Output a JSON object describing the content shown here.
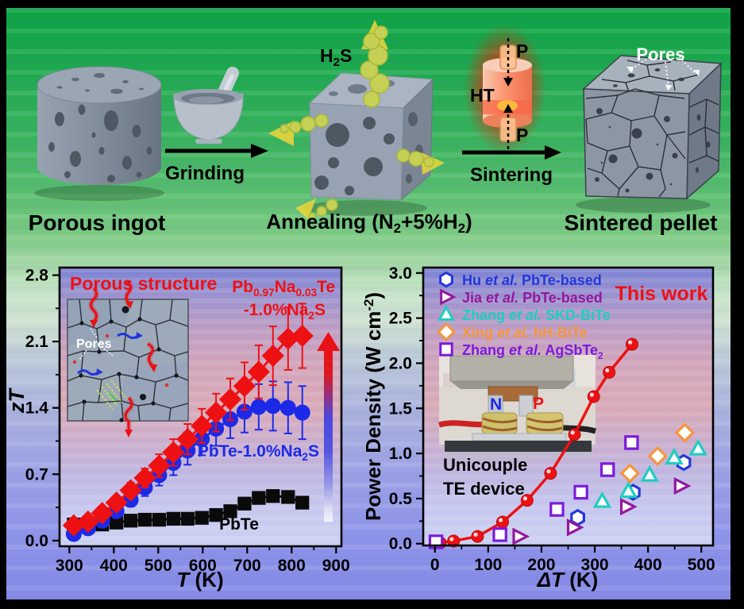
{
  "figure": {
    "process": {
      "porous_ingot_label": "Porous ingot",
      "grinding_label": "Grinding",
      "h2s_label": [
        {
          "t": "H"
        },
        {
          "t": "2",
          "s": "sub"
        },
        {
          "t": "S"
        }
      ],
      "annealing_label": [
        {
          "t": "Annealing (N"
        },
        {
          "t": "2",
          "s": "sub"
        },
        {
          "t": "+5%H"
        },
        {
          "t": "2",
          "s": "sub"
        },
        {
          "t": ")"
        }
      ],
      "pressure_top": "P",
      "pressure_bottom": "P",
      "hot_press_label": "HT",
      "sintering_label": "Sintering",
      "pores_label": "Pores",
      "sintered_pellet_label": "Sintered pellet"
    },
    "accent_colors": {
      "highlight_red": "#ee1113",
      "smoke_yellow": "#c6d054",
      "arrow_yellow": "#e6d43c"
    }
  },
  "chart_data": [
    {
      "type": "line",
      "title": "",
      "xlabel": [
        {
          "t": "T",
          "s": "i"
        },
        {
          "t": " (K)"
        }
      ],
      "ylabel": [
        {
          "t": "z",
          "s": "i"
        },
        {
          "t": "T",
          "s": "i"
        }
      ],
      "xlim": [
        278,
        912
      ],
      "ylim": [
        -0.06,
        2.88
      ],
      "xticks": [
        300,
        400,
        500,
        600,
        700,
        800,
        900
      ],
      "yticks": [
        0.0,
        0.7,
        1.4,
        2.1,
        2.8
      ],
      "ytick_labels": [
        "0.0",
        "0.7",
        "1.4",
        "2.1",
        "2.8"
      ],
      "grid": false,
      "x": [
        310,
        342,
        374,
        406,
        438,
        470,
        502,
        534,
        566,
        598,
        630,
        662,
        694,
        726,
        758,
        792,
        824
      ],
      "series": [
        {
          "name": [
            {
              "t": "PbTe"
            }
          ],
          "color": "#0a0a0a",
          "marker": "square",
          "values": [
            0.17,
            0.15,
            0.17,
            0.19,
            0.21,
            0.22,
            0.22,
            0.23,
            0.23,
            0.24,
            0.27,
            0.31,
            0.39,
            0.45,
            0.47,
            0.46,
            0.4
          ],
          "errors": [
            0.03,
            0.03,
            0.03,
            0.03,
            0.03,
            0.03,
            0.03,
            0.03,
            0.03,
            0.03,
            0.03,
            0.03,
            0.04,
            0.04,
            0.04,
            0.04,
            0.04
          ]
        },
        {
          "name": [
            {
              "t": "PbTe-1.0%Na"
            },
            {
              "t": "2",
              "s": "sub"
            },
            {
              "t": "S"
            }
          ],
          "color": "#1c2ae8",
          "marker": "circle",
          "values": [
            0.07,
            0.13,
            0.21,
            0.31,
            0.43,
            0.56,
            0.69,
            0.82,
            0.95,
            1.07,
            1.18,
            1.28,
            1.36,
            1.41,
            1.42,
            1.4,
            1.35
          ],
          "errors": [
            0.01,
            0.02,
            0.03,
            0.05,
            0.07,
            0.09,
            0.11,
            0.13,
            0.15,
            0.17,
            0.18,
            0.2,
            0.22,
            0.24,
            0.26,
            0.27,
            0.28
          ]
        },
        {
          "name": [
            {
              "t": "Pb"
            },
            {
              "t": "0.97",
              "s": "sub"
            },
            {
              "t": "Na"
            },
            {
              "t": "0.03",
              "s": "sub"
            },
            {
              "t": "Te"
            }
          ],
          "name2": [
            {
              "t": "-1.0%Na"
            },
            {
              "t": "2",
              "s": "sub"
            },
            {
              "t": "S"
            }
          ],
          "color": "#ee1113",
          "marker": "diamond",
          "values": [
            0.16,
            0.2,
            0.29,
            0.4,
            0.53,
            0.66,
            0.79,
            0.93,
            1.07,
            1.21,
            1.35,
            1.49,
            1.63,
            1.78,
            1.95,
            2.13,
            2.16
          ],
          "errors": [
            0.02,
            0.03,
            0.05,
            0.06,
            0.08,
            0.1,
            0.12,
            0.14,
            0.16,
            0.18,
            0.2,
            0.22,
            0.25,
            0.28,
            0.31,
            0.33,
            0.34
          ]
        }
      ],
      "inset": {
        "title": "Porous structure",
        "title_color": "#ee1113",
        "pores_label": "Pores"
      }
    },
    {
      "type": "scatter",
      "title": "",
      "xlabel": [
        {
          "t": "ΔT",
          "s": "i"
        },
        {
          "t": " (K)"
        }
      ],
      "ylabel": [
        {
          "t": "Power Density (W cm"
        },
        {
          "t": "-2",
          "s": "sup"
        },
        {
          "t": ")"
        }
      ],
      "xlim": [
        -22,
        522
      ],
      "ylim": [
        -0.02,
        3.06
      ],
      "xticks": [
        0,
        100,
        200,
        300,
        400,
        500
      ],
      "yticks": [
        0.0,
        0.5,
        1.0,
        1.5,
        2.0,
        2.5,
        3.0
      ],
      "ytick_labels": [
        "0.0",
        "0.5",
        "1.0",
        "1.5",
        "2.0",
        "2.5",
        "3.0"
      ],
      "grid": false,
      "legend_position": "top-left",
      "series": [
        {
          "name": [
            {
              "t": "Hu "
            },
            {
              "t": "et al.",
              "s": "i"
            },
            {
              "t": " PbTe-based"
            }
          ],
          "color": "#2337db",
          "marker": "hexagon",
          "points": [
            [
              268,
              0.29
            ],
            [
              372,
              0.57
            ],
            [
              467,
              0.9
            ]
          ]
        },
        {
          "name": [
            {
              "t": "Jia "
            },
            {
              "t": "et al.",
              "s": "i"
            },
            {
              "t": " PbTe-based"
            }
          ],
          "color": "#93189f",
          "marker": "triangle-right",
          "points": [
            [
              158,
              0.08
            ],
            [
              260,
              0.18
            ],
            [
              360,
              0.41
            ],
            [
              461,
              0.64
            ]
          ]
        },
        {
          "name": [
            {
              "t": "Zhang "
            },
            {
              "t": "et al.",
              "s": "i"
            },
            {
              "t": " SKD-BiTe"
            }
          ],
          "color": "#1fcdc2",
          "marker": "triangle-up",
          "points": [
            [
              314,
              0.47
            ],
            [
              363,
              0.58
            ],
            [
              403,
              0.76
            ],
            [
              449,
              0.95
            ],
            [
              494,
              1.05
            ]
          ]
        },
        {
          "name": [
            {
              "t": "Xing "
            },
            {
              "t": "et al.",
              "s": "i"
            },
            {
              "t": " hH-BiTe"
            }
          ],
          "color": "#f6953b",
          "marker": "diamond",
          "points": [
            [
              366,
              0.78
            ],
            [
              418,
              0.97
            ],
            [
              469,
              1.23
            ]
          ]
        },
        {
          "name": [
            {
              "t": "Zhang "
            },
            {
              "t": "et al.",
              "s": "i"
            },
            {
              "t": " AgSbTe"
            },
            {
              "t": "2",
              "s": "sub"
            }
          ],
          "color": "#7b1bdb",
          "marker": "square",
          "points": [
            [
              2,
              0.02
            ],
            [
              122,
              0.1
            ],
            [
              229,
              0.38
            ],
            [
              274,
              0.57
            ],
            [
              324,
              0.82
            ],
            [
              369,
              1.12
            ]
          ]
        }
      ],
      "this_work": {
        "label": "This work",
        "color": "#ee1113",
        "x": [
          10,
          35,
          80,
          127,
          173,
          217,
          262,
          298,
          327,
          370
        ],
        "y": [
          0.01,
          0.03,
          0.08,
          0.24,
          0.48,
          0.78,
          1.21,
          1.63,
          1.9,
          2.21
        ]
      },
      "device_inset": {
        "line1": "Unicouple",
        "line2": "TE device",
        "n_label": "N",
        "p_label": "P"
      }
    }
  ]
}
